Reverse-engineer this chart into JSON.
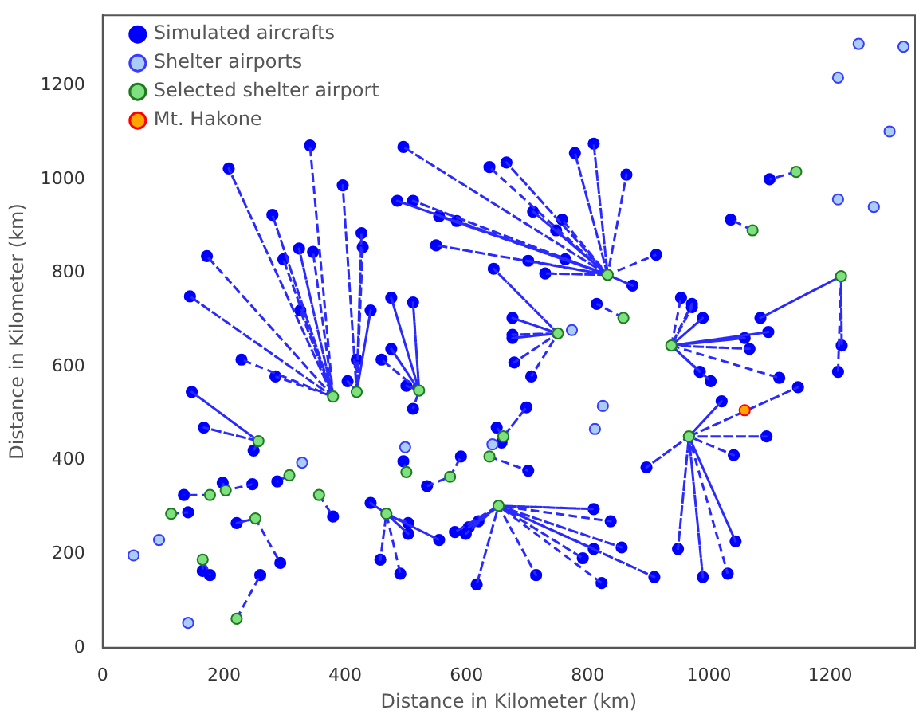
{
  "chart_data": {
    "type": "scatter",
    "xlabel": "Distance in Kilometer (km)",
    "ylabel": "Distance in Kilometer (km)",
    "xlim": [
      0,
      1340
    ],
    "ylim": [
      0,
      1350
    ],
    "xticks": [
      0,
      200,
      400,
      600,
      800,
      1000,
      1200
    ],
    "yticks": [
      0,
      200,
      400,
      600,
      800,
      1000,
      1200
    ],
    "grid": false,
    "legend": "top left",
    "series": [
      {
        "type": "line",
        "color": "#2a2aff",
        "line_style": "dashed",
        "marker": "none",
        "x": [
          380,
          342,
          380,
          208,
          380,
          280,
          380,
          172,
          380,
          324,
          380,
          347,
          380,
          298,
          380,
          144,
          380,
          326,
          380,
          229,
          380,
          285
        ],
        "values": [
          536,
          1072,
          536,
          1023,
          536,
          924,
          536,
          836,
          536,
          852,
          536,
          845,
          536,
          829,
          536,
          750,
          536,
          720,
          536,
          615,
          536,
          579
        ]
      },
      {
        "type": "line",
        "color": "#2a2aff",
        "line_style": "dashed",
        "marker": "none",
        "x": [
          419,
          396,
          419,
          427,
          419,
          429,
          419,
          442,
          419,
          404,
          419,
          419
        ],
        "values": [
          546,
          987,
          546,
          885,
          546,
          855,
          546,
          720,
          546,
          569,
          546,
          615
        ]
      },
      {
        "type": "line",
        "color": "#2a2aff",
        "line_style": "dashed",
        "marker": "none",
        "x": [
          257,
          147,
          257,
          167,
          257,
          249
        ],
        "values": [
          441,
          546,
          441,
          470,
          441,
          421
        ]
      },
      {
        "type": "line",
        "color": "#2a2aff",
        "line_style": "dashed",
        "marker": "none",
        "x": [
          308,
          288
        ],
        "values": [
          368,
          355
        ]
      },
      {
        "type": "line",
        "color": "#2a2aff",
        "line_style": "dashed",
        "marker": "none",
        "x": [
          203,
          198,
          203,
          247
        ],
        "values": [
          336,
          352,
          336,
          349
        ]
      },
      {
        "type": "line",
        "color": "#2a2aff",
        "line_style": "dashed",
        "marker": "none",
        "x": [
          177,
          134
        ],
        "values": [
          326,
          326
        ]
      },
      {
        "type": "line",
        "color": "#2a2aff",
        "line_style": "dashed",
        "marker": "none",
        "x": [
          113,
          141
        ],
        "values": [
          286,
          289
        ]
      },
      {
        "type": "line",
        "color": "#2a2aff",
        "line_style": "dashed",
        "marker": "none",
        "x": [
          357,
          380
        ],
        "values": [
          326,
          280
        ]
      },
      {
        "type": "line",
        "color": "#2a2aff",
        "line_style": "dashed",
        "marker": "none",
        "x": [
          252,
          221,
          252,
          293
        ],
        "values": [
          276,
          266,
          276,
          181
        ]
      },
      {
        "type": "line",
        "color": "#2a2aff",
        "line_style": "dashed",
        "marker": "none",
        "x": [
          165,
          165,
          165,
          177
        ],
        "values": [
          188,
          164,
          188,
          155
        ]
      },
      {
        "type": "line",
        "color": "#2a2aff",
        "line_style": "dashed",
        "marker": "none",
        "x": [
          221,
          260
        ],
        "values": [
          62,
          155
        ]
      },
      {
        "type": "line",
        "color": "#2a2aff",
        "line_style": "dashed",
        "marker": "none",
        "x": [
          833,
          496,
          833,
          779,
          833,
          810,
          833,
          864,
          833,
          638,
          833,
          666,
          833,
          486,
          833,
          512,
          833,
          555,
          833,
          584,
          833,
          710,
          833,
          758,
          833,
          748,
          833,
          550,
          833,
          702,
          833,
          730,
          833,
          763,
          833,
          874,
          833,
          913
        ],
        "values": [
          796,
          1069,
          796,
          1056,
          796,
          1076,
          796,
          1010,
          796,
          1026,
          796,
          1036,
          796,
          954,
          796,
          954,
          796,
          921,
          796,
          911,
          796,
          931,
          796,
          914,
          796,
          891,
          796,
          859,
          796,
          826,
          796,
          799,
          796,
          829,
          796,
          773,
          796,
          839
        ]
      },
      {
        "type": "line",
        "color": "#2a2aff",
        "line_style": "dashed",
        "marker": "none",
        "x": [
          859,
          815
        ],
        "values": [
          704,
          734
        ]
      },
      {
        "type": "line",
        "color": "#2a2aff",
        "line_style": "dashed",
        "marker": "none",
        "x": [
          1144,
          1100
        ],
        "values": [
          1016,
          1000
        ]
      },
      {
        "type": "line",
        "color": "#2a2aff",
        "line_style": "dashed",
        "marker": "none",
        "x": [
          1072,
          1036
        ],
        "values": [
          891,
          914
        ]
      },
      {
        "type": "line",
        "color": "#2a2aff",
        "line_style": "dashed",
        "marker": "none",
        "x": [
          1218,
          1085,
          1218,
          1219,
          1218,
          1213
        ],
        "values": [
          793,
          704,
          793,
          645,
          793,
          589
        ]
      },
      {
        "type": "line",
        "color": "#2a2aff",
        "line_style": "dashed",
        "marker": "none",
        "x": [
          938,
          954,
          938,
          972,
          938,
          972,
          938,
          990,
          938,
          1098,
          938,
          1059,
          938,
          1067,
          938,
          985,
          938,
          1003,
          938,
          1116
        ],
        "values": [
          645,
          747,
          645,
          734,
          645,
          727,
          645,
          704,
          645,
          674,
          645,
          661,
          645,
          638,
          645,
          589,
          645,
          569,
          645,
          576
        ]
      },
      {
        "type": "line",
        "color": "#2a2aff",
        "line_style": "dashed",
        "marker": "none",
        "x": [
          967,
          1147,
          967,
          1021,
          967,
          1095,
          967,
          1041,
          967,
          897,
          967,
          949,
          967,
          1044,
          967,
          990,
          967,
          1031
        ],
        "values": [
          451,
          556,
          451,
          526,
          451,
          451,
          451,
          411,
          451,
          385,
          451,
          211,
          451,
          227,
          451,
          151,
          451,
          158
        ]
      },
      {
        "type": "line",
        "color": "#2a2aff",
        "line_style": "dashed",
        "marker": "none",
        "x": [
          522,
          476,
          522,
          512,
          522,
          460,
          522,
          476,
          522,
          501,
          522,
          512
        ],
        "values": [
          549,
          747,
          549,
          737,
          549,
          615,
          549,
          638,
          549,
          559,
          549,
          510
        ]
      },
      {
        "type": "line",
        "color": "#2a2aff",
        "line_style": "dashed",
        "marker": "none",
        "x": [
          661,
          699,
          661,
          650,
          661,
          658
        ],
        "values": [
          451,
          513,
          451,
          470,
          451,
          438
        ]
      },
      {
        "type": "line",
        "color": "#2a2aff",
        "line_style": "dashed",
        "marker": "none",
        "x": [
          638,
          702
        ],
        "values": [
          408,
          378
        ]
      },
      {
        "type": "line",
        "color": "#2a2aff",
        "line_style": "dashed",
        "marker": "none",
        "x": [
          501,
          496
        ],
        "values": [
          375,
          398
        ]
      },
      {
        "type": "line",
        "color": "#2a2aff",
        "line_style": "dashed",
        "marker": "none",
        "x": [
          573,
          591,
          573,
          535
        ],
        "values": [
          365,
          408,
          365,
          345
        ]
      },
      {
        "type": "line",
        "color": "#2a2aff",
        "line_style": "dashed",
        "marker": "none",
        "x": [
          468,
          442,
          468,
          504,
          468,
          504,
          468,
          555,
          468,
          458,
          468,
          491
        ],
        "values": [
          286,
          309,
          286,
          266,
          286,
          243,
          286,
          230,
          286,
          188,
          286,
          158
        ]
      },
      {
        "type": "line",
        "color": "#2a2aff",
        "line_style": "dashed",
        "marker": "none",
        "x": [
          653,
          910,
          653,
          581,
          653,
          599,
          653,
          604,
          653,
          620,
          653,
          617,
          653,
          715,
          653,
          810,
          653,
          838,
          653,
          856,
          653,
          810,
          653,
          792,
          653,
          823
        ],
        "values": [
          303,
          151,
          303,
          247,
          303,
          243,
          303,
          257,
          303,
          270,
          303,
          135,
          303,
          155,
          303,
          296,
          303,
          270,
          303,
          214,
          303,
          211,
          303,
          191,
          303,
          138
        ]
      },
      {
        "type": "line",
        "color": "#2a2aff",
        "line_style": "dashed",
        "marker": "none",
        "x": [
          751,
          645,
          751,
          676,
          751,
          676,
          751,
          676,
          751,
          679,
          751,
          707
        ],
        "values": [
          671,
          809,
          671,
          704,
          671,
          668,
          671,
          661,
          671,
          609,
          671,
          579
        ]
      },
      {
        "type": "scatter",
        "name": "Simulated aircrafts",
        "color": "#0000ff",
        "marker": "circle",
        "x": [
          342,
          208,
          280,
          172,
          324,
          347,
          298,
          144,
          326,
          229,
          285,
          396,
          427,
          429,
          442,
          404,
          419,
          147,
          167,
          249,
          288,
          198,
          247,
          134,
          141,
          380,
          221,
          293,
          165,
          177,
          260,
          496,
          779,
          810,
          864,
          638,
          666,
          486,
          512,
          555,
          584,
          710,
          758,
          748,
          550,
          702,
          730,
          763,
          874,
          913,
          815,
          1100,
          1036,
          1085,
          1219,
          1213,
          954,
          972,
          972,
          990,
          1098,
          1059,
          1067,
          985,
          1003,
          1116,
          1147,
          1021,
          1095,
          1041,
          897,
          949,
          1044,
          990,
          1031,
          476,
          512,
          460,
          476,
          501,
          512,
          699,
          650,
          658,
          702,
          496,
          591,
          535,
          442,
          504,
          504,
          555,
          458,
          491,
          910,
          581,
          599,
          604,
          620,
          617,
          715,
          810,
          838,
          856,
          810,
          792,
          823,
          645,
          676,
          676,
          676,
          679,
          707
        ],
        "values": [
          1072,
          1023,
          924,
          836,
          852,
          845,
          829,
          750,
          720,
          615,
          579,
          987,
          885,
          855,
          720,
          569,
          615,
          546,
          470,
          421,
          355,
          352,
          349,
          326,
          289,
          280,
          266,
          181,
          164,
          155,
          155,
          1069,
          1056,
          1076,
          1010,
          1026,
          1036,
          954,
          954,
          921,
          911,
          931,
          914,
          891,
          859,
          826,
          799,
          829,
          773,
          839,
          734,
          1000,
          914,
          704,
          645,
          589,
          747,
          734,
          727,
          704,
          674,
          661,
          638,
          589,
          569,
          576,
          556,
          526,
          451,
          411,
          385,
          211,
          227,
          151,
          158,
          747,
          737,
          615,
          638,
          559,
          510,
          513,
          470,
          438,
          378,
          398,
          408,
          345,
          309,
          266,
          243,
          230,
          188,
          158,
          151,
          247,
          243,
          257,
          270,
          135,
          155,
          296,
          270,
          214,
          211,
          191,
          138,
          809,
          704,
          668,
          661,
          609,
          579
        ]
      },
      {
        "type": "scatter",
        "name": "Shelter airports",
        "color": "#a9cdf5",
        "marker": "circle",
        "x": [
          1247,
          1321,
          1213,
          1298,
          1213,
          1272,
          774,
          825,
          812,
          643,
          499,
          329,
          93,
          51,
          141
        ],
        "values": [
          1289,
          1283,
          1217,
          1102,
          957,
          941,
          678,
          516,
          467,
          434,
          428,
          395,
          230,
          197,
          53
        ]
      },
      {
        "type": "scatter",
        "name": "Selected shelter airport",
        "color": "#7ee07e",
        "marker": "circle",
        "x": [
          380,
          419,
          257,
          308,
          203,
          177,
          113,
          357,
          252,
          165,
          221,
          833,
          859,
          1144,
          1072,
          1218,
          938,
          967,
          522,
          661,
          638,
          501,
          573,
          468,
          653,
          751
        ],
        "values": [
          536,
          546,
          441,
          368,
          336,
          326,
          286,
          326,
          276,
          188,
          62,
          796,
          704,
          1016,
          891,
          793,
          645,
          451,
          549,
          451,
          408,
          375,
          365,
          286,
          303,
          671
        ]
      },
      {
        "type": "scatter",
        "name": "Mt. Hakone",
        "color": "#ffa500",
        "marker": "circle",
        "x": [
          1059
        ],
        "values": [
          507
        ]
      }
    ]
  }
}
